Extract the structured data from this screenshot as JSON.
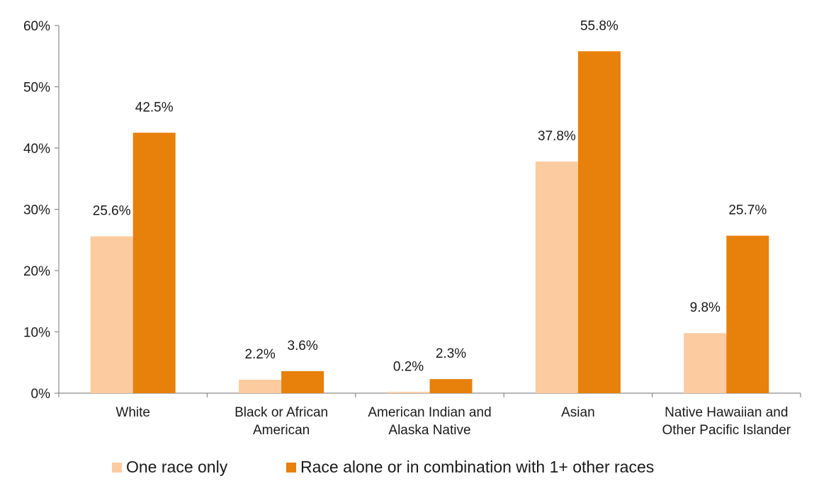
{
  "chart_data": {
    "type": "bar",
    "categories": [
      [
        "White"
      ],
      [
        "Black or African",
        "American"
      ],
      [
        "American Indian and",
        "Alaska Native"
      ],
      [
        "Asian"
      ],
      [
        "Native Hawaiian and",
        "Other Pacific Islander"
      ]
    ],
    "series": [
      {
        "name": "One race only",
        "color": "#FDCBA0",
        "values": [
          25.6,
          2.2,
          0.2,
          37.8,
          9.8
        ],
        "labels": [
          "25.6%",
          "2.2%",
          "0.2%",
          "37.8%",
          "9.8%"
        ]
      },
      {
        "name": "Race alone or in combination with 1+ other races",
        "color": "#E8800C",
        "values": [
          42.5,
          3.6,
          2.3,
          55.8,
          25.7
        ],
        "labels": [
          "42.5%",
          "3.6%",
          "2.3%",
          "55.8%",
          "25.7%"
        ]
      }
    ],
    "yticks": [
      "0%",
      "10%",
      "20%",
      "30%",
      "40%",
      "50%",
      "60%"
    ],
    "ylim": [
      0,
      60
    ],
    "grid": false,
    "legend_position": "bottom"
  }
}
